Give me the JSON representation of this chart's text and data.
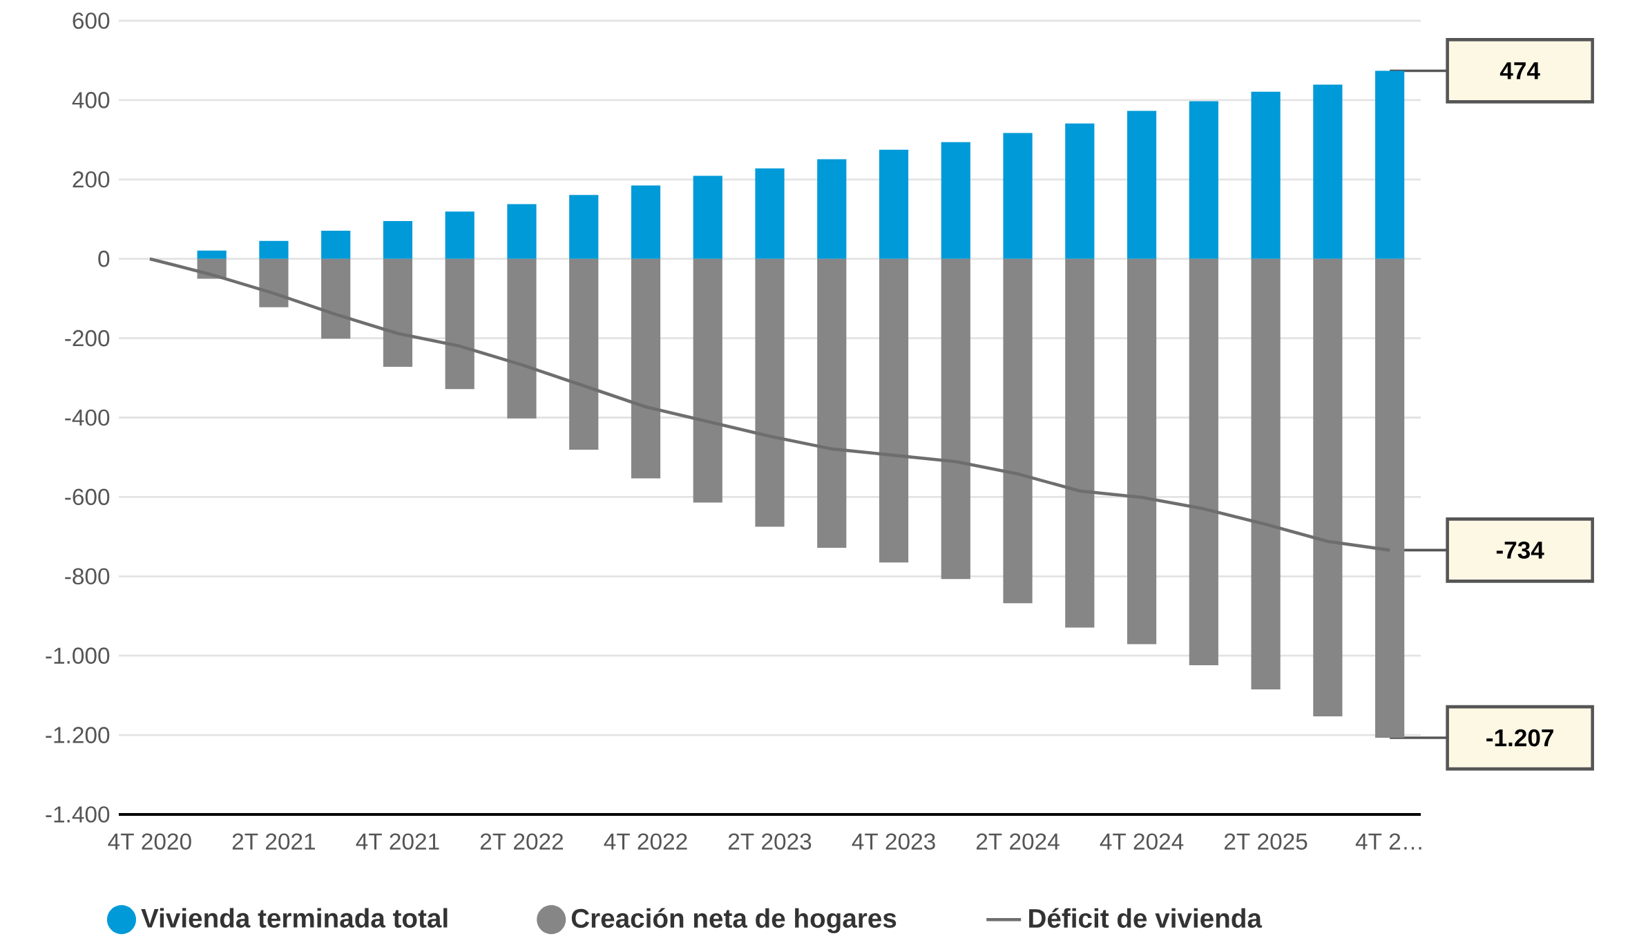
{
  "chart_data": {
    "type": "bar",
    "categories": [
      "4T 2020",
      null,
      "2T 2021",
      null,
      "4T 2021",
      null,
      "2T 2022",
      null,
      "4T 2022",
      null,
      "2T 2023",
      null,
      "4T 2023",
      null,
      "2T 2024",
      null,
      "4T 2024",
      null,
      "2T 2025",
      null,
      "4T 2…"
    ],
    "series": [
      {
        "name": "Vivienda terminada total",
        "color": "#009ad8",
        "values": [
          null,
          21,
          45,
          71,
          95,
          119,
          138,
          161,
          185,
          209,
          228,
          251,
          275,
          294,
          317,
          341,
          373,
          397,
          421,
          439,
          474
        ]
      },
      {
        "name": "Creación neta de hogares",
        "color": "#868686",
        "values": [
          null,
          -50,
          -122,
          -201,
          -272,
          -328,
          -402,
          -481,
          -553,
          -614,
          -675,
          -728,
          -765,
          -807,
          -868,
          -929,
          -971,
          -1024,
          -1085,
          -1153,
          -1207
        ]
      },
      {
        "name": "Déficit de vivienda",
        "type": "line",
        "color": "#6e6e6e",
        "values": [
          0,
          -40,
          -87,
          -140,
          -188,
          -220,
          -267,
          -320,
          -373,
          -410,
          -447,
          -479,
          -495,
          -511,
          -542,
          -585,
          -601,
          -630,
          -669,
          -712,
          -734
        ]
      }
    ],
    "annotations": [
      {
        "text": "474",
        "x": "4T 2…",
        "y": 474
      },
      {
        "text": "-1.207",
        "x": "4T 2…",
        "y": -1207
      },
      {
        "text": "-734",
        "x": "4T 2…",
        "y": -734
      }
    ],
    "ylim": [
      -1400,
      600
    ],
    "yticks": [
      {
        "value": -1400,
        "label": "-1.400"
      },
      {
        "value": -1200,
        "label": "-1.200"
      },
      {
        "value": -1000,
        "label": "-1.000"
      },
      -800,
      -600,
      -400,
      -200,
      0,
      200,
      400,
      600
    ],
    "stacked": true,
    "grid": "y",
    "legend": "bottom",
    "marker": "none",
    "line_style": "solid"
  }
}
